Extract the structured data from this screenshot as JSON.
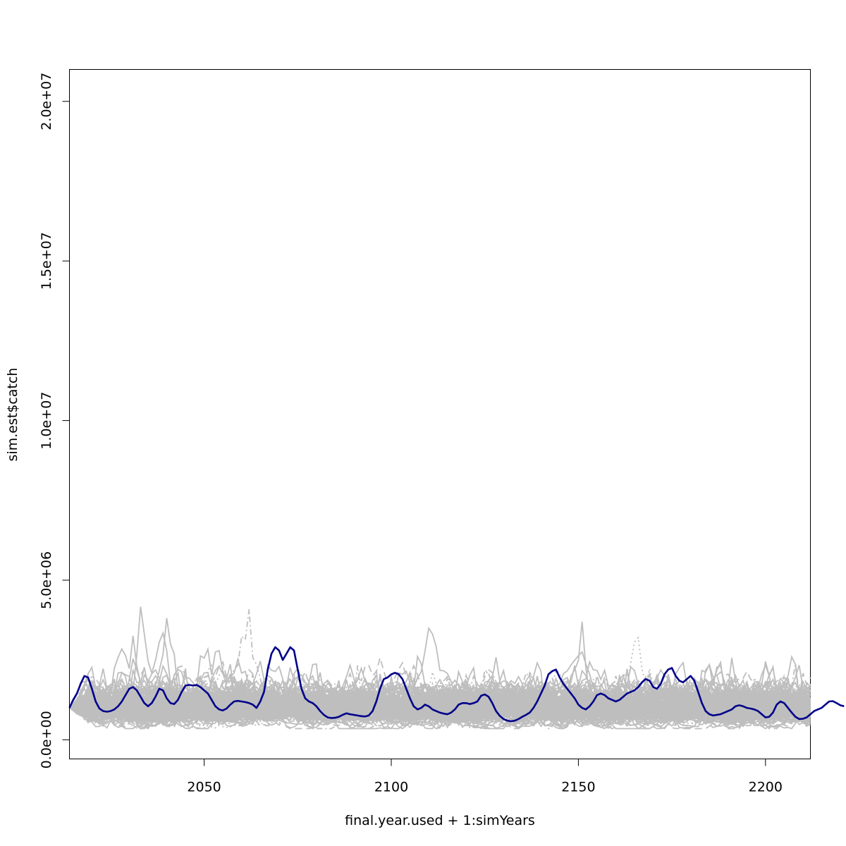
{
  "chart_data": {
    "type": "line",
    "title": "",
    "xlabel": "final.year.used + 1:simYears",
    "ylabel": "sim.est$catch",
    "xlim": [
      2014,
      2212
    ],
    "ylim": [
      -600000,
      21000000
    ],
    "x_ticks": [
      {
        "value": 2050,
        "label": "2050"
      },
      {
        "value": 2100,
        "label": "2100"
      },
      {
        "value": 2150,
        "label": "2150"
      },
      {
        "value": 2200,
        "label": "2200"
      }
    ],
    "y_ticks": [
      {
        "value": 0,
        "label": "0.0e+00"
      },
      {
        "value": 5000000,
        "label": "5.0e+06"
      },
      {
        "value": 10000000,
        "label": "1.0e+07"
      },
      {
        "value": 15000000,
        "label": "1.5e+07"
      },
      {
        "value": 20000000,
        "label": "2.0e+07"
      }
    ],
    "grid": false,
    "legend": "none",
    "background_series": {
      "color": "#bebebe",
      "count": 200,
      "x_start": 2014,
      "x_end": 2212,
      "styles": [
        "solid",
        "dashed",
        "dotted",
        "dotdash"
      ]
    },
    "highlight_series": {
      "color": "#00008b",
      "x_start": 2014,
      "values": [
        1000000,
        1250000,
        1450000,
        1750000,
        2000000,
        1950000,
        1600000,
        1200000,
        980000,
        900000,
        880000,
        900000,
        950000,
        1050000,
        1200000,
        1400000,
        1600000,
        1650000,
        1550000,
        1350000,
        1150000,
        1050000,
        1150000,
        1350000,
        1600000,
        1550000,
        1300000,
        1150000,
        1120000,
        1250000,
        1500000,
        1700000,
        1720000,
        1700000,
        1720000,
        1650000,
        1550000,
        1450000,
        1250000,
        1050000,
        950000,
        920000,
        980000,
        1100000,
        1200000,
        1220000,
        1200000,
        1180000,
        1150000,
        1100000,
        1000000,
        1200000,
        1500000,
        2200000,
        2700000,
        2900000,
        2800000,
        2500000,
        2700000,
        2900000,
        2800000,
        2200000,
        1600000,
        1300000,
        1200000,
        1150000,
        1050000,
        900000,
        780000,
        700000,
        680000,
        690000,
        720000,
        780000,
        830000,
        800000,
        780000,
        760000,
        740000,
        730000,
        760000,
        900000,
        1200000,
        1600000,
        1900000,
        1950000,
        2050000,
        2100000,
        2050000,
        1900000,
        1600000,
        1300000,
        1050000,
        950000,
        1000000,
        1100000,
        1050000,
        950000,
        900000,
        850000,
        820000,
        800000,
        850000,
        950000,
        1100000,
        1150000,
        1150000,
        1120000,
        1150000,
        1200000,
        1380000,
        1420000,
        1350000,
        1150000,
        900000,
        750000,
        650000,
        600000,
        580000,
        600000,
        650000,
        720000,
        780000,
        850000,
        1000000,
        1200000,
        1450000,
        1700000,
        2050000,
        2150000,
        2200000,
        1950000,
        1750000,
        1600000,
        1450000,
        1300000,
        1100000,
        1000000,
        950000,
        1050000,
        1200000,
        1400000,
        1450000,
        1400000,
        1300000,
        1250000,
        1200000,
        1250000,
        1350000,
        1450000,
        1500000,
        1550000,
        1650000,
        1800000,
        1900000,
        1850000,
        1650000,
        1600000,
        1750000,
        2050000,
        2200000,
        2250000,
        2000000,
        1850000,
        1800000,
        1900000,
        2000000,
        1850000,
        1500000,
        1150000,
        900000,
        800000,
        760000,
        780000,
        800000,
        850000,
        900000,
        950000,
        1050000,
        1080000,
        1050000,
        1000000,
        980000,
        950000,
        900000,
        800000,
        700000,
        720000,
        850000,
        1100000,
        1200000,
        1150000,
        1000000,
        850000,
        720000,
        650000,
        660000,
        700000,
        800000,
        900000,
        950000,
        1000000,
        1100000,
        1200000,
        1210000,
        1150000,
        1080000,
        1050000
      ]
    }
  }
}
